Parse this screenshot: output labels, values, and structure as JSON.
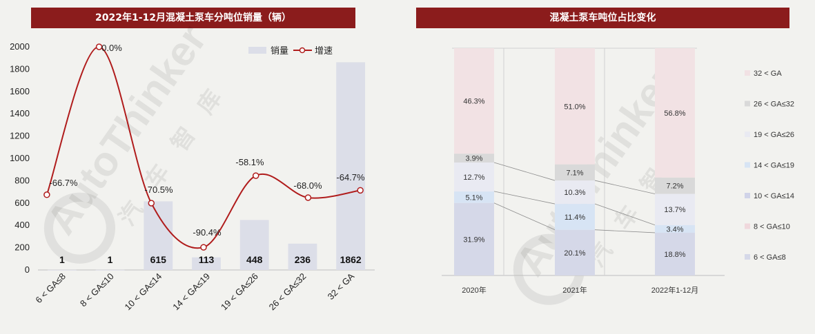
{
  "colors": {
    "title_bg": "#8b1c1c",
    "bar": "#dcdee8",
    "line": "#b01c1c",
    "seg_6_8": "#d5d8e8",
    "seg_8_10": "#f0d8dc",
    "seg_10_14": "#d0d3e8",
    "seg_14_19": "#d7e4f4",
    "seg_19_26": "#e9eaf2",
    "seg_26_32": "#d9d9d9",
    "seg_32": "#f2e2e4"
  },
  "watermark": {
    "text": "AutoThinker",
    "chars": [
      "汽",
      "车",
      "智",
      "库"
    ]
  },
  "chart_data": [
    {
      "type": "bar",
      "title": "2022年1-12月混凝土泵车分吨位销量（辆）",
      "categories": [
        "6 < GA≤8",
        "8 < GA≤10",
        "10 < GA≤14",
        "14 < GA≤19",
        "19 < GA≤26",
        "26 < GA≤32",
        "32 < GA"
      ],
      "series": [
        {
          "name": "销量",
          "type": "bar",
          "values": [
            1,
            1,
            615,
            113,
            448,
            236,
            1862
          ],
          "labels": [
            "1",
            "1",
            "615",
            "113",
            "448",
            "236",
            "1862"
          ]
        },
        {
          "name": "增速",
          "type": "line",
          "values": [
            -66.7,
            0.0,
            -70.5,
            -90.4,
            -58.1,
            -68.0,
            -64.7
          ],
          "labels": [
            "-66.7%",
            "0.0%",
            "-70.5%",
            "-90.4%",
            "-58.1%",
            "-68.0%",
            "-64.7%"
          ]
        }
      ],
      "ylim": [
        0,
        2000
      ],
      "yticks": [
        "0",
        "200",
        "400",
        "600",
        "800",
        "1000",
        "1200",
        "1400",
        "1600",
        "1800",
        "2000"
      ],
      "legend": "top-right"
    },
    {
      "type": "bar",
      "stacked": true,
      "title": "混凝土泵车吨位占比变化",
      "categories": [
        "2020年",
        "2021年",
        "2022年1-12月"
      ],
      "series": [
        {
          "name": "6 < GA≤8",
          "values": [
            31.9,
            20.1,
            18.8
          ],
          "labels": [
            "31.9%",
            "20.1%",
            "18.8%"
          ]
        },
        {
          "name": "8 < GA≤10",
          "values": [
            0.0,
            0.0,
            0.0
          ],
          "labels": [
            "",
            "",
            ""
          ]
        },
        {
          "name": "10 < GA≤14",
          "values": [
            0.0,
            0.0,
            0.0
          ],
          "labels": [
            "",
            "",
            ""
          ]
        },
        {
          "name": "14 < GA≤19",
          "values": [
            5.1,
            11.4,
            3.4
          ],
          "labels": [
            "5.1%",
            "11.4%",
            "3.4%"
          ]
        },
        {
          "name": "19 < GA≤26",
          "values": [
            12.7,
            10.3,
            13.7
          ],
          "labels": [
            "12.7%",
            "10.3%",
            "13.7%"
          ]
        },
        {
          "name": "26 < GA≤32",
          "values": [
            3.9,
            7.1,
            7.2
          ],
          "labels": [
            "3.9%",
            "7.1%",
            "7.2%"
          ]
        },
        {
          "name": "32 < GA",
          "values": [
            46.3,
            51.0,
            56.8
          ],
          "labels": [
            "46.3%",
            "51.0%",
            "56.8%"
          ]
        }
      ],
      "ylim": [
        0,
        100
      ],
      "legend": "right"
    }
  ]
}
